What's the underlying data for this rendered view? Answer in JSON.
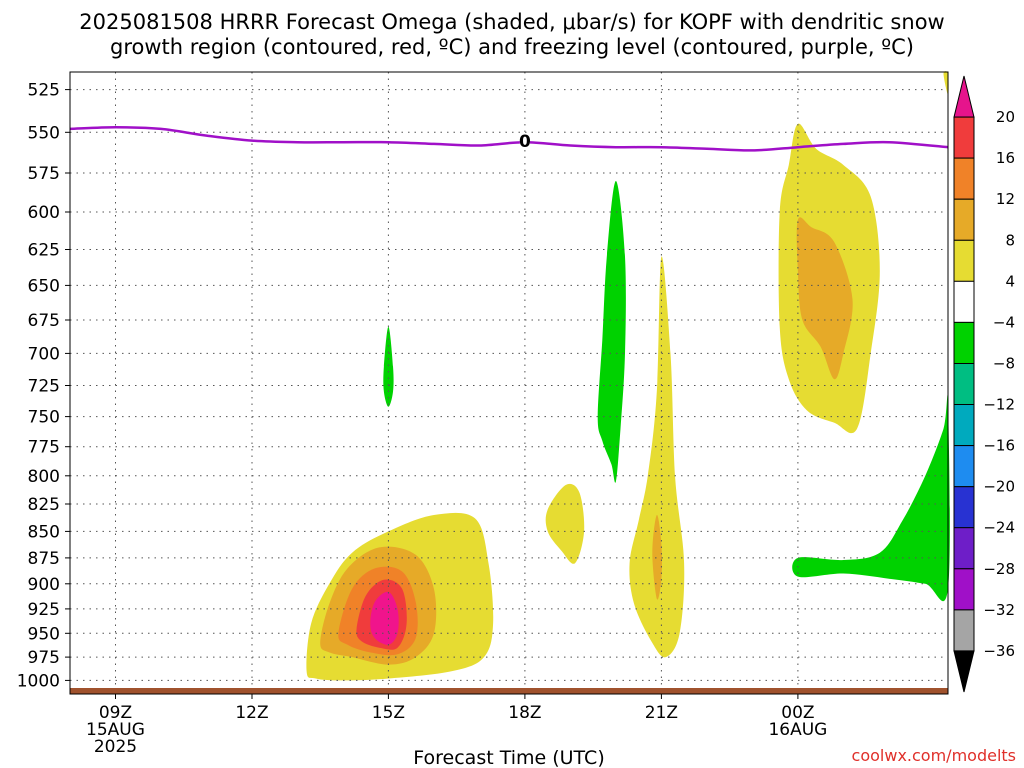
{
  "chart_data": {
    "type": "heatmap",
    "title_line1": "2025081508 HRRR Forecast Omega (shaded, μbar/s) for KOPF with dendritic snow",
    "title_line2": "growth region (contoured, red, ºC) and freezing level (contoured, purple, ºC)",
    "xlabel": "Forecast Time (UTC)",
    "ylabel": "",
    "x_range": [
      8,
      27.3
    ],
    "y_range": [
      1015,
      515
    ],
    "y_scale": "log-pressure",
    "grid": "dotted",
    "x_ticks": [
      {
        "x": 9,
        "lines": [
          "09Z",
          "15AUG",
          "2025"
        ]
      },
      {
        "x": 12,
        "lines": [
          "12Z"
        ]
      },
      {
        "x": 15,
        "lines": [
          "15Z"
        ]
      },
      {
        "x": 18,
        "lines": [
          "18Z"
        ]
      },
      {
        "x": 21,
        "lines": [
          "21Z"
        ]
      },
      {
        "x": 24,
        "lines": [
          "00Z",
          "16AUG"
        ]
      }
    ],
    "y_ticks": [
      525,
      550,
      575,
      600,
      625,
      650,
      675,
      700,
      725,
      750,
      775,
      800,
      825,
      850,
      875,
      900,
      925,
      950,
      975,
      1000
    ],
    "freezing_level": {
      "label": "0",
      "color": "#a010c8",
      "points": [
        [
          8,
          548
        ],
        [
          9,
          547
        ],
        [
          10,
          548
        ],
        [
          11,
          552
        ],
        [
          12,
          555
        ],
        [
          13,
          556
        ],
        [
          14,
          556
        ],
        [
          15,
          556
        ],
        [
          16,
          557
        ],
        [
          17,
          558
        ],
        [
          18,
          556
        ],
        [
          19,
          558
        ],
        [
          20,
          559
        ],
        [
          21,
          559
        ],
        [
          22,
          560
        ],
        [
          23,
          561
        ],
        [
          24,
          559
        ],
        [
          25,
          557
        ],
        [
          26,
          556
        ],
        [
          27.3,
          559
        ]
      ]
    },
    "terrain": {
      "color": "#a0522d",
      "pressure": 1010
    },
    "regions": [
      {
        "level": "4 to 8",
        "color": "#e6dc32",
        "points": [
          [
            13.2,
            990
          ],
          [
            13.3,
            940
          ],
          [
            13.7,
            900
          ],
          [
            14.2,
            870
          ],
          [
            15,
            850
          ],
          [
            16,
            835
          ],
          [
            16.9,
            838
          ],
          [
            17.2,
            880
          ],
          [
            17.3,
            940
          ],
          [
            17.1,
            975
          ],
          [
            16.4,
            990
          ],
          [
            15,
            998
          ],
          [
            14,
            1000
          ],
          [
            13.4,
            998
          ]
        ]
      },
      {
        "level": "8 to 12",
        "color": "#e6aa28",
        "points": [
          [
            13.5,
            960
          ],
          [
            13.7,
            920
          ],
          [
            14.1,
            885
          ],
          [
            14.8,
            865
          ],
          [
            15.6,
            872
          ],
          [
            16.0,
            905
          ],
          [
            16.0,
            950
          ],
          [
            15.6,
            975
          ],
          [
            15,
            983
          ],
          [
            14.2,
            975
          ],
          [
            13.7,
            970
          ]
        ]
      },
      {
        "level": "12 to 16",
        "color": "#f08228",
        "points": [
          [
            13.9,
            950
          ],
          [
            14.2,
            905
          ],
          [
            14.7,
            885
          ],
          [
            15.3,
            888
          ],
          [
            15.6,
            918
          ],
          [
            15.6,
            955
          ],
          [
            15.2,
            972
          ],
          [
            14.6,
            970
          ],
          [
            14.1,
            962
          ]
        ]
      },
      {
        "level": "16 to 20",
        "color": "#f03c3c",
        "points": [
          [
            14.3,
            945
          ],
          [
            14.5,
            912
          ],
          [
            14.9,
            896
          ],
          [
            15.3,
            905
          ],
          [
            15.4,
            940
          ],
          [
            15.2,
            965
          ],
          [
            14.8,
            965
          ],
          [
            14.4,
            958
          ]
        ]
      },
      {
        "level": "> 20",
        "color": "#f0148c",
        "points": [
          [
            14.6,
            940
          ],
          [
            14.7,
            918
          ],
          [
            15.0,
            908
          ],
          [
            15.2,
            925
          ],
          [
            15.2,
            950
          ],
          [
            15.0,
            962
          ],
          [
            14.7,
            955
          ]
        ]
      },
      {
        "level": "4 to 8",
        "color": "#e6dc32",
        "points": [
          [
            18.5,
            830
          ],
          [
            18.9,
            808
          ],
          [
            19.2,
            815
          ],
          [
            19.3,
            850
          ],
          [
            19.1,
            880
          ],
          [
            18.8,
            868
          ],
          [
            18.5,
            850
          ]
        ]
      },
      {
        "level": "-4 to -8",
        "color": "#00d200",
        "points": [
          [
            19.6,
            750
          ],
          [
            19.7,
            690
          ],
          [
            19.8,
            630
          ],
          [
            20.0,
            580
          ],
          [
            20.2,
            630
          ],
          [
            20.2,
            700
          ],
          [
            20.1,
            760
          ],
          [
            20.0,
            805
          ],
          [
            19.9,
            790
          ],
          [
            19.7,
            770
          ]
        ]
      },
      {
        "level": "4 to 8",
        "color": "#e6dc32",
        "points": [
          [
            20.3,
            880
          ],
          [
            20.5,
            840
          ],
          [
            20.7,
            800
          ],
          [
            20.9,
            730
          ],
          [
            21.0,
            630
          ],
          [
            21.2,
            700
          ],
          [
            21.3,
            800
          ],
          [
            21.5,
            880
          ],
          [
            21.4,
            950
          ],
          [
            21.1,
            975
          ],
          [
            20.8,
            960
          ],
          [
            20.4,
            920
          ]
        ]
      },
      {
        "level": "8 to 12",
        "color": "#e6aa28",
        "points": [
          [
            20.8,
            870
          ],
          [
            20.9,
            835
          ],
          [
            21.0,
            862
          ],
          [
            21.0,
            895
          ],
          [
            20.9,
            915
          ]
        ]
      },
      {
        "level": "-4 to -8",
        "color": "#00d200",
        "points": [
          [
            14.9,
            710
          ],
          [
            15.0,
            680
          ],
          [
            15.1,
            710
          ],
          [
            15.1,
            730
          ],
          [
            15.0,
            742
          ],
          [
            14.9,
            730
          ]
        ]
      },
      {
        "level": "4 to 8",
        "color": "#e6dc32",
        "points": [
          [
            23.6,
            600
          ],
          [
            23.8,
            570
          ],
          [
            24.0,
            545
          ],
          [
            24.4,
            560
          ],
          [
            25.0,
            570
          ],
          [
            25.6,
            590
          ],
          [
            25.8,
            640
          ],
          [
            25.6,
            700
          ],
          [
            25.3,
            760
          ],
          [
            24.8,
            755
          ],
          [
            24.2,
            745
          ],
          [
            23.8,
            720
          ],
          [
            23.6,
            680
          ]
        ]
      },
      {
        "level": "8 to 12",
        "color": "#e6aa28",
        "points": [
          [
            24.0,
            640
          ],
          [
            24.0,
            605
          ],
          [
            24.3,
            610
          ],
          [
            24.8,
            620
          ],
          [
            25.2,
            660
          ],
          [
            25.0,
            700
          ],
          [
            24.8,
            720
          ],
          [
            24.5,
            695
          ],
          [
            24.1,
            675
          ]
        ]
      },
      {
        "level": "-4 to -8",
        "color": "#00d200",
        "points": [
          [
            24.0,
            875
          ],
          [
            25.0,
            877
          ],
          [
            25.8,
            870
          ],
          [
            26.3,
            840
          ],
          [
            26.8,
            800
          ],
          [
            27.2,
            760
          ],
          [
            27.3,
            740
          ],
          [
            27.3,
            905
          ],
          [
            26.8,
            900
          ],
          [
            26.0,
            895
          ],
          [
            25.0,
            890
          ],
          [
            24.0,
            893
          ]
        ]
      },
      {
        "level": "4 to 8",
        "color": "#e6dc32",
        "points": [
          [
            27.2,
            516
          ],
          [
            27.3,
            516
          ],
          [
            27.3,
            528
          ]
        ]
      }
    ],
    "colorbar": {
      "segments": [
        {
          "color": "#e6148c",
          "kind": "triangle-top"
        },
        {
          "color": "#f03c3c"
        },
        {
          "color": "#f08228"
        },
        {
          "color": "#e6aa28"
        },
        {
          "color": "#e6dc32"
        },
        {
          "color": "#ffffff"
        },
        {
          "color": "#00d200"
        },
        {
          "color": "#00be82"
        },
        {
          "color": "#00aabe"
        },
        {
          "color": "#1e8cf0"
        },
        {
          "color": "#2832d2"
        },
        {
          "color": "#6e1ec8"
        },
        {
          "color": "#a010c8"
        },
        {
          "color": "#a5a5a5"
        },
        {
          "color": "#000000",
          "kind": "triangle-bottom"
        }
      ],
      "labels": [
        "20",
        "16",
        "12",
        "8",
        "4",
        "−4",
        "−8",
        "−12",
        "−16",
        "−20",
        "−24",
        "−28",
        "−32",
        "−36"
      ]
    },
    "credit": "coolwx.com/modelts"
  }
}
